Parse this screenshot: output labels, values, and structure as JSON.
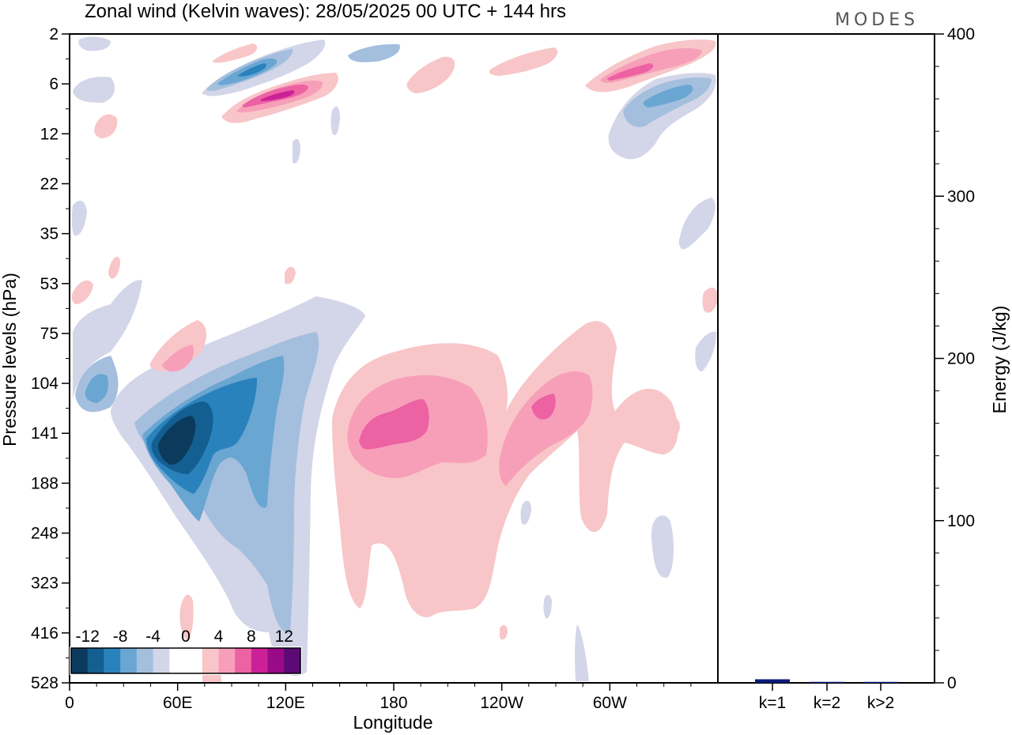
{
  "header": {
    "title": "Zonal wind (Kelvin waves):  28/05/2025  00 UTC  + 144 hrs",
    "logo": "MODES"
  },
  "chart_data": [
    {
      "type": "heatmap",
      "title": "Zonal wind (Kelvin waves):  28/05/2025  00 UTC  + 144 hrs",
      "xlabel": "Longitude",
      "ylabel": "Pressure levels (hPa)",
      "x_ticks": [
        "0",
        "60E",
        "120E",
        "180",
        "120W",
        "60W"
      ],
      "y_ticks": [
        "2",
        "6",
        "12",
        "22",
        "35",
        "53",
        "75",
        "104",
        "141",
        "188",
        "248",
        "323",
        "416",
        "528"
      ],
      "colorbar": {
        "labels": [
          "-12",
          "-8",
          "-4",
          "0",
          "4",
          "8",
          "12"
        ],
        "colors": [
          "#0b3a5c",
          "#145f91",
          "#2a82bd",
          "#6aa6d2",
          "#a4bfdd",
          "#d3d5e8",
          "#ffffff",
          "#ffffff",
          "#f8c6c8",
          "#f79fb9",
          "#ec62a3",
          "#cc2196",
          "#980a86",
          "#5c0a76"
        ]
      },
      "features": [
        {
          "name": "upper-negative-jet-west",
          "sign": "negative",
          "x": 37,
          "p": 6
        },
        {
          "name": "upper-positive-jet-west",
          "sign": "positive",
          "x": 75,
          "p": 8
        },
        {
          "name": "upper-positive-jet-east",
          "sign": "positive",
          "x": 295,
          "p": 5
        },
        {
          "name": "upper-negative-jet-east",
          "sign": "negative",
          "x": 320,
          "p": 8
        },
        {
          "name": "tropospheric-negative-core",
          "sign": "negative",
          "x": 55,
          "p": 141
        },
        {
          "name": "tropospheric-positive-core",
          "sign": "positive",
          "x": 180,
          "p": 141
        },
        {
          "name": "tropospheric-positive-core-2",
          "sign": "positive",
          "x": 262,
          "p": 125
        }
      ]
    },
    {
      "type": "bar",
      "ylabel": "Energy (J/kg)",
      "categories": [
        "k=1",
        "k=2",
        "k>2"
      ],
      "values": [
        2.2,
        0.6,
        0.5
      ],
      "ylim": [
        0,
        400
      ],
      "y_ticks": [
        "0",
        "100",
        "200",
        "300",
        "400"
      ],
      "bar_color": "#0a1a7a"
    }
  ]
}
